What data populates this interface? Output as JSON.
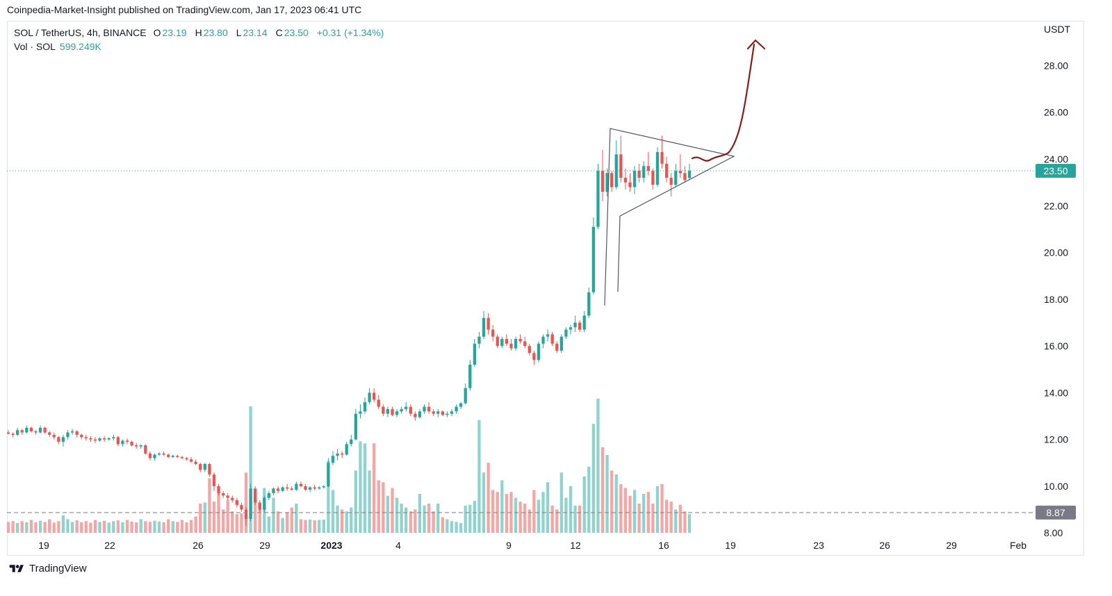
{
  "header": {
    "published_by": "Coinpedia-Market-Insight published on TradingView.com, Jan 17, 2023 06:41 UTC"
  },
  "legend": {
    "symbol": "SOL / TetherUS, 4h, BINANCE",
    "o_label": "O",
    "o_value": "23.19",
    "h_label": "H",
    "h_value": "23.80",
    "l_label": "L",
    "l_value": "23.14",
    "c_label": "C",
    "c_value": "23.50",
    "change": "+0.31 (+1.34%)",
    "vol_label": "Vol · SOL",
    "vol_value": "599.249K"
  },
  "colors": {
    "up": "#26a69a",
    "down": "#ef5350",
    "up_volume": "#8fd3cc",
    "down_volume": "#f6a5a4",
    "price_line": "#26a69a",
    "projection_arrow": "#8b1a1a",
    "pattern_lines": "#555555"
  },
  "footer": {
    "brand": "TradingView"
  },
  "chart_data": {
    "type": "candlestick",
    "symbol": "SOL / TetherUS",
    "interval": "4h",
    "exchange": "BINANCE",
    "y_unit": "USDT",
    "ylim": [
      7.5,
      29.5
    ],
    "y_ticks": [
      "8.00",
      "10.00",
      "12.00",
      "14.00",
      "16.00",
      "18.00",
      "20.00",
      "22.00",
      "24.00",
      "26.00",
      "28.00"
    ],
    "x_ticks": [
      "19",
      "22",
      "26",
      "29",
      "2023",
      "4",
      "9",
      "12",
      "16",
      "19",
      "23",
      "26",
      "29",
      "Feb"
    ],
    "last_price": "23.50",
    "horizontal_line_level": "8.87",
    "candles": [
      [
        12.3,
        12.4,
        12.2,
        12.25
      ],
      [
        12.25,
        12.3,
        12.1,
        12.2
      ],
      [
        12.2,
        12.5,
        12.15,
        12.4
      ],
      [
        12.4,
        12.45,
        12.2,
        12.3
      ],
      [
        12.3,
        12.6,
        12.25,
        12.5
      ],
      [
        12.5,
        12.55,
        12.3,
        12.35
      ],
      [
        12.35,
        12.4,
        12.2,
        12.3
      ],
      [
        12.3,
        12.6,
        12.25,
        12.5
      ],
      [
        12.5,
        12.55,
        12.25,
        12.3
      ],
      [
        12.3,
        12.35,
        12.1,
        12.2
      ],
      [
        12.2,
        12.3,
        12.0,
        12.1
      ],
      [
        12.1,
        12.15,
        11.8,
        11.9
      ],
      [
        11.9,
        12.2,
        11.7,
        12.1
      ],
      [
        12.1,
        12.4,
        12.0,
        12.3
      ],
      [
        12.3,
        12.45,
        12.2,
        12.35
      ],
      [
        12.35,
        12.4,
        12.1,
        12.2
      ],
      [
        12.2,
        12.25,
        12.0,
        12.1
      ],
      [
        12.1,
        12.2,
        11.95,
        12.05
      ],
      [
        12.05,
        12.15,
        11.9,
        12.0
      ],
      [
        12.0,
        12.1,
        11.85,
        11.95
      ],
      [
        11.95,
        12.1,
        11.9,
        12.05
      ],
      [
        12.05,
        12.15,
        11.9,
        12.0
      ],
      [
        12.0,
        12.1,
        11.95,
        12.05
      ],
      [
        12.05,
        12.2,
        11.95,
        12.1
      ],
      [
        12.1,
        12.15,
        11.7,
        11.8
      ],
      [
        11.8,
        12.0,
        11.7,
        11.95
      ],
      [
        11.95,
        12.05,
        11.8,
        11.9
      ],
      [
        11.9,
        11.95,
        11.7,
        11.75
      ],
      [
        11.75,
        11.85,
        11.6,
        11.7
      ],
      [
        11.7,
        11.8,
        11.6,
        11.75
      ],
      [
        11.75,
        11.8,
        11.35,
        11.4
      ],
      [
        11.4,
        11.5,
        11.1,
        11.2
      ],
      [
        11.2,
        11.4,
        11.1,
        11.35
      ],
      [
        11.35,
        11.45,
        11.3,
        11.4
      ],
      [
        11.4,
        11.5,
        11.3,
        11.35
      ],
      [
        11.35,
        11.4,
        11.2,
        11.25
      ],
      [
        11.25,
        11.35,
        11.2,
        11.3
      ],
      [
        11.3,
        11.35,
        11.2,
        11.25
      ],
      [
        11.25,
        11.3,
        11.15,
        11.2
      ],
      [
        11.2,
        11.25,
        11.1,
        11.15
      ],
      [
        11.15,
        11.25,
        11.0,
        11.05
      ],
      [
        11.05,
        11.15,
        10.9,
        10.95
      ],
      [
        10.95,
        11.0,
        10.6,
        10.7
      ],
      [
        10.7,
        11.0,
        10.6,
        10.95
      ],
      [
        10.95,
        11.0,
        10.4,
        10.5
      ],
      [
        10.5,
        10.6,
        9.8,
        10.0
      ],
      [
        10.0,
        10.1,
        9.6,
        9.7
      ],
      [
        9.7,
        9.8,
        9.5,
        9.6
      ],
      [
        9.6,
        9.7,
        9.4,
        9.5
      ],
      [
        9.5,
        9.6,
        9.3,
        9.4
      ],
      [
        9.4,
        9.5,
        9.1,
        9.2
      ],
      [
        9.2,
        9.3,
        8.9,
        9.0
      ],
      [
        9.0,
        9.1,
        8.3,
        8.6
      ],
      [
        8.6,
        10.1,
        8.5,
        9.9
      ],
      [
        9.9,
        10.0,
        9.2,
        9.3
      ],
      [
        9.3,
        9.4,
        8.9,
        9.0
      ],
      [
        9.0,
        9.6,
        8.9,
        9.5
      ],
      [
        9.5,
        9.8,
        9.4,
        9.7
      ],
      [
        9.7,
        9.95,
        9.6,
        9.9
      ],
      [
        9.9,
        10.0,
        9.7,
        9.8
      ],
      [
        9.8,
        10.0,
        9.75,
        9.95
      ],
      [
        9.95,
        10.1,
        9.8,
        9.9
      ],
      [
        9.9,
        10.0,
        9.8,
        9.85
      ],
      [
        9.85,
        10.2,
        9.8,
        10.1
      ],
      [
        10.1,
        10.2,
        9.95,
        10.0
      ],
      [
        10.0,
        10.1,
        9.8,
        9.85
      ],
      [
        9.85,
        10.0,
        9.75,
        9.95
      ],
      [
        9.95,
        10.05,
        9.85,
        9.9
      ],
      [
        9.9,
        10.0,
        9.85,
        9.95
      ],
      [
        9.95,
        10.05,
        9.9,
        10.0
      ],
      [
        10.0,
        11.2,
        9.95,
        11.0
      ],
      [
        11.0,
        11.5,
        10.9,
        11.3
      ],
      [
        11.3,
        11.6,
        11.1,
        11.4
      ],
      [
        11.4,
        11.5,
        11.2,
        11.35
      ],
      [
        11.35,
        11.9,
        11.3,
        11.8
      ],
      [
        11.8,
        12.2,
        11.7,
        12.0
      ],
      [
        12.0,
        13.3,
        11.95,
        13.1
      ],
      [
        13.1,
        13.5,
        12.9,
        13.2
      ],
      [
        13.2,
        13.8,
        13.1,
        13.6
      ],
      [
        13.6,
        14.2,
        13.5,
        14.0
      ],
      [
        14.0,
        14.2,
        13.6,
        13.7
      ],
      [
        13.7,
        13.9,
        13.3,
        13.4
      ],
      [
        13.4,
        13.5,
        13.0,
        13.1
      ],
      [
        13.1,
        13.4,
        12.95,
        13.3
      ],
      [
        13.3,
        13.4,
        13.0,
        13.05
      ],
      [
        13.05,
        13.3,
        12.95,
        13.2
      ],
      [
        13.2,
        13.4,
        13.1,
        13.3
      ],
      [
        13.3,
        13.6,
        13.2,
        13.4
      ],
      [
        13.4,
        13.5,
        13.0,
        13.1
      ],
      [
        13.1,
        13.2,
        12.8,
        12.95
      ],
      [
        12.95,
        13.3,
        12.9,
        13.2
      ],
      [
        13.2,
        13.5,
        13.1,
        13.4
      ],
      [
        13.4,
        13.6,
        13.1,
        13.2
      ],
      [
        13.2,
        13.3,
        13.0,
        13.1
      ],
      [
        13.1,
        13.3,
        12.95,
        13.2
      ],
      [
        13.2,
        13.25,
        13.0,
        13.05
      ],
      [
        13.05,
        13.2,
        12.95,
        13.1
      ],
      [
        13.1,
        13.3,
        13.0,
        13.2
      ],
      [
        13.2,
        13.5,
        13.1,
        13.4
      ],
      [
        13.4,
        13.6,
        13.3,
        13.55
      ],
      [
        13.55,
        14.4,
        13.5,
        14.2
      ],
      [
        14.2,
        15.4,
        14.1,
        15.2
      ],
      [
        15.2,
        16.3,
        15.1,
        16.1
      ],
      [
        16.1,
        16.6,
        15.9,
        16.4
      ],
      [
        16.4,
        17.5,
        16.3,
        17.2
      ],
      [
        17.2,
        17.4,
        16.5,
        16.7
      ],
      [
        16.7,
        16.9,
        16.2,
        16.4
      ],
      [
        16.4,
        16.5,
        15.9,
        16.0
      ],
      [
        16.0,
        16.4,
        15.9,
        16.3
      ],
      [
        16.3,
        16.5,
        16.0,
        16.1
      ],
      [
        16.1,
        16.3,
        15.8,
        15.9
      ],
      [
        15.9,
        16.4,
        15.8,
        16.3
      ],
      [
        16.3,
        16.5,
        16.1,
        16.2
      ],
      [
        16.2,
        16.4,
        15.9,
        16.0
      ],
      [
        16.0,
        16.1,
        15.6,
        15.7
      ],
      [
        15.7,
        15.8,
        15.2,
        15.4
      ],
      [
        15.4,
        16.2,
        15.3,
        16.1
      ],
      [
        16.1,
        16.5,
        15.9,
        16.4
      ],
      [
        16.4,
        16.7,
        16.2,
        16.5
      ],
      [
        16.5,
        16.6,
        16.0,
        16.1
      ],
      [
        16.1,
        16.2,
        15.7,
        15.8
      ],
      [
        15.8,
        16.5,
        15.7,
        16.4
      ],
      [
        16.4,
        16.8,
        16.3,
        16.7
      ],
      [
        16.7,
        16.9,
        16.5,
        16.8
      ],
      [
        16.8,
        17.3,
        16.6,
        17.0
      ],
      [
        17.0,
        17.1,
        16.6,
        16.7
      ],
      [
        16.7,
        17.5,
        16.6,
        17.3
      ],
      [
        17.3,
        18.5,
        17.2,
        18.3
      ],
      [
        18.3,
        21.5,
        18.2,
        21.1
      ],
      [
        21.1,
        23.8,
        21.0,
        23.5
      ],
      [
        23.5,
        24.4,
        22.2,
        22.6
      ],
      [
        22.6,
        23.6,
        22.4,
        23.4
      ],
      [
        23.4,
        23.5,
        22.6,
        22.8
      ],
      [
        22.8,
        24.8,
        22.7,
        24.2
      ],
      [
        24.2,
        25.0,
        23.0,
        23.2
      ],
      [
        23.2,
        23.6,
        22.7,
        23.0
      ],
      [
        23.0,
        23.4,
        22.6,
        22.8
      ],
      [
        22.8,
        23.7,
        22.5,
        23.5
      ],
      [
        23.5,
        23.8,
        23.0,
        23.2
      ],
      [
        23.2,
        23.9,
        23.0,
        23.7
      ],
      [
        23.7,
        24.3,
        23.3,
        23.5
      ],
      [
        23.5,
        23.6,
        22.7,
        22.9
      ],
      [
        22.9,
        24.5,
        22.8,
        24.3
      ],
      [
        24.3,
        25.0,
        23.6,
        23.8
      ],
      [
        23.8,
        24.1,
        23.0,
        23.2
      ],
      [
        23.2,
        23.4,
        22.4,
        22.9
      ],
      [
        22.9,
        23.8,
        22.8,
        23.5
      ],
      [
        23.5,
        24.2,
        23.2,
        23.4
      ],
      [
        23.4,
        23.7,
        23.0,
        23.1
      ],
      [
        23.19,
        23.8,
        23.14,
        23.5
      ]
    ],
    "volumes": [
      0.28,
      0.3,
      0.25,
      0.3,
      0.27,
      0.33,
      0.27,
      0.31,
      0.28,
      0.35,
      0.26,
      0.3,
      0.45,
      0.35,
      0.28,
      0.32,
      0.27,
      0.3,
      0.26,
      0.33,
      0.28,
      0.31,
      0.26,
      0.3,
      0.32,
      0.27,
      0.33,
      0.29,
      0.27,
      0.35,
      0.3,
      0.28,
      0.31,
      0.29,
      0.27,
      0.35,
      0.3,
      0.28,
      0.33,
      0.27,
      0.33,
      0.42,
      0.75,
      0.78,
      1.4,
      0.8,
      1.05,
      0.6,
      0.85,
      0.55,
      0.48,
      0.5,
      1.55,
      3.25,
      0.9,
      0.75,
      1.15,
      0.42,
      0.9,
      0.55,
      0.38,
      0.52,
      0.65,
      0.75,
      0.35,
      0.33,
      0.34,
      0.32,
      0.33,
      0.34,
      1.85,
      1.1,
      0.7,
      0.6,
      0.55,
      0.65,
      1.6,
      2.35,
      2.3,
      1.6,
      2.3,
      1.35,
      1.3,
      0.95,
      1.15,
      0.9,
      0.75,
      0.65,
      0.55,
      0.6,
      1.0,
      0.7,
      0.75,
      0.55,
      0.75,
      0.4,
      0.35,
      0.3,
      0.28,
      0.25,
      0.7,
      0.72,
      0.82,
      2.9,
      1.55,
      1.8,
      1.1,
      1.05,
      1.35,
      1.0,
      1.05,
      0.9,
      0.8,
      0.75,
      0.6,
      1.1,
      0.85,
      1.05,
      1.3,
      0.7,
      0.6,
      1.55,
      0.9,
      1.2,
      0.7,
      0.7,
      1.45,
      1.7,
      2.8,
      3.45,
      2.2,
      2.0,
      1.6,
      1.5,
      1.25,
      1.15,
      0.95,
      1.1,
      0.75,
      1.0,
      1.05,
      0.75,
      1.2,
      1.25,
      0.85,
      0.8,
      0.6,
      0.72,
      0.55,
      0.48
    ]
  }
}
